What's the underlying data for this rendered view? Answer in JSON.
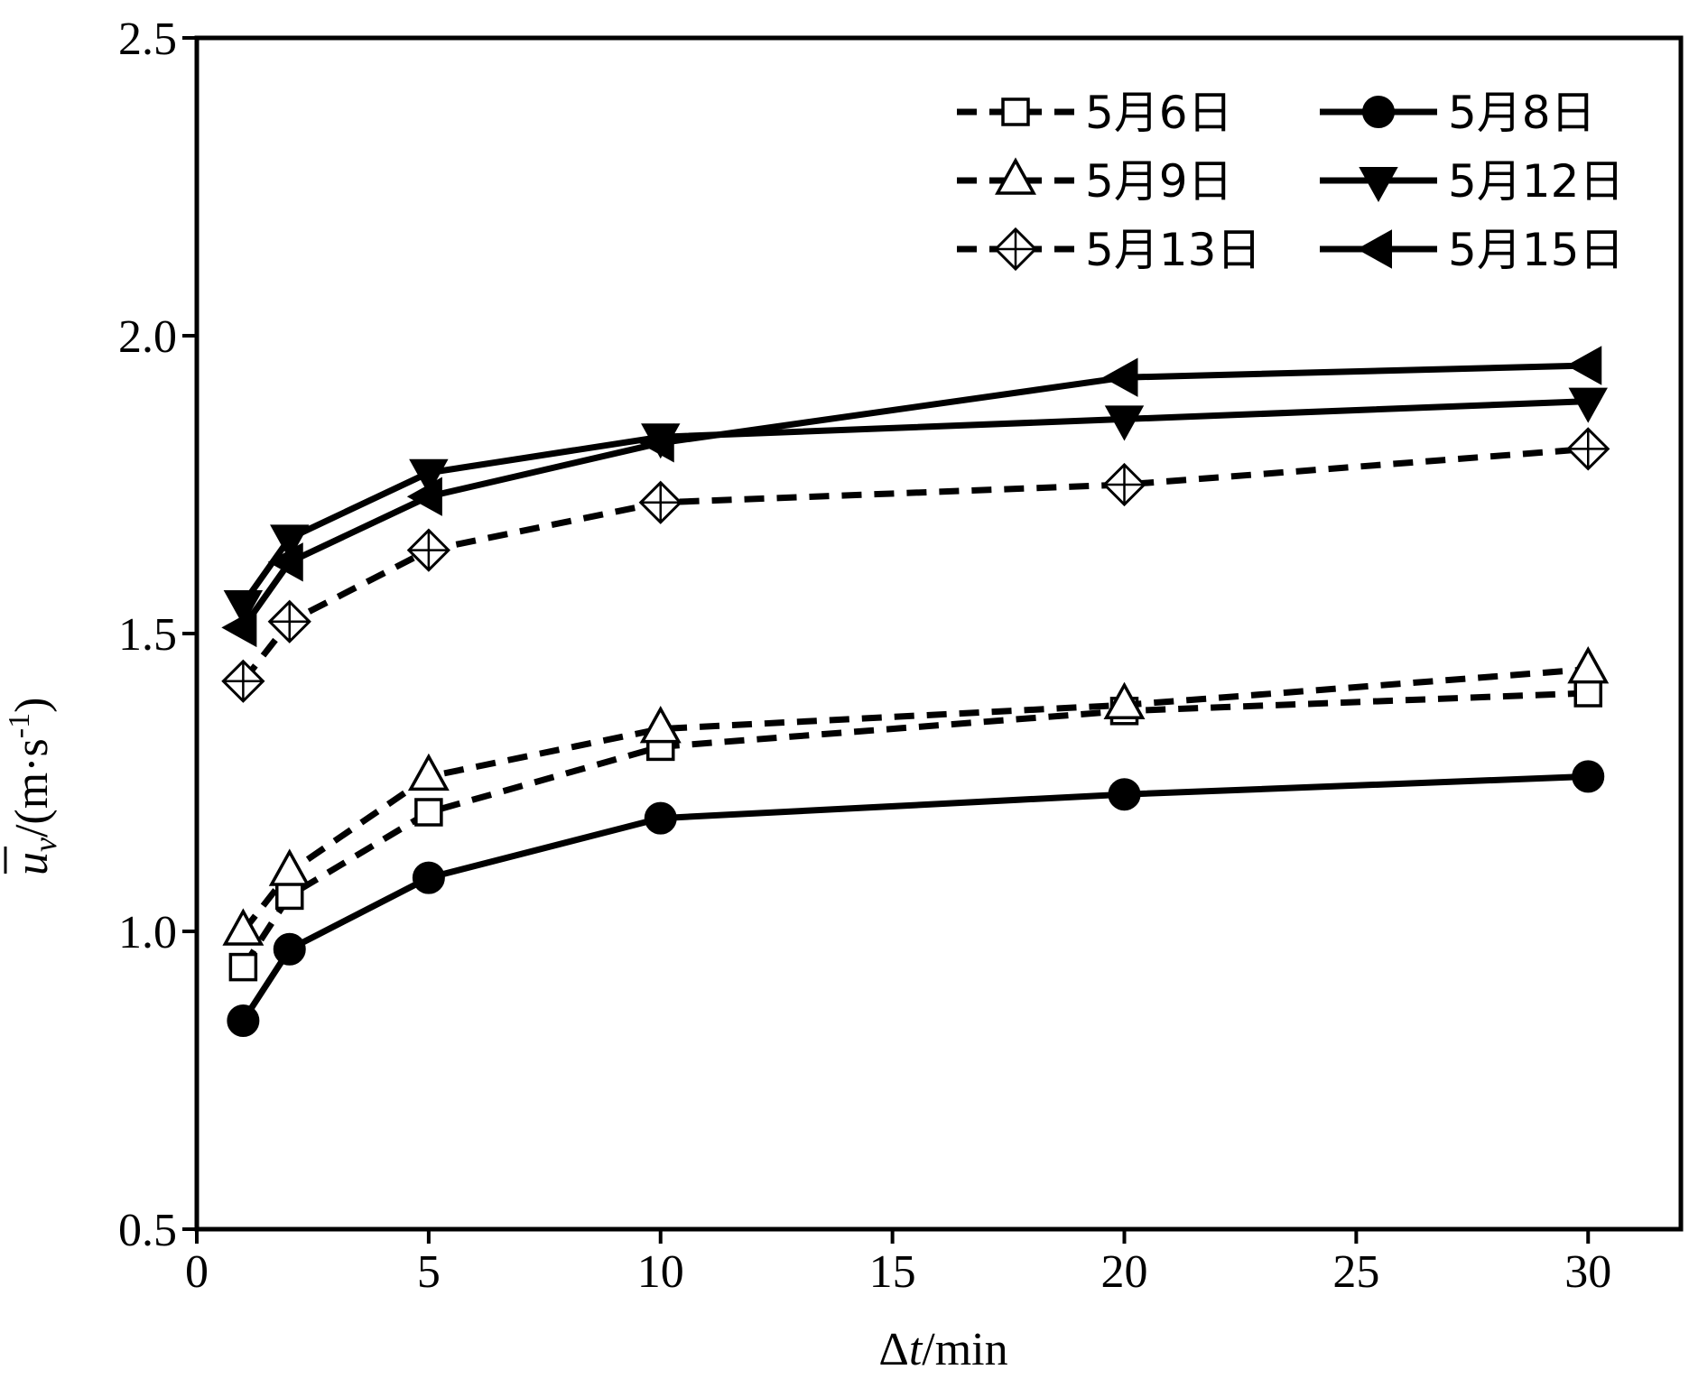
{
  "chart_data": {
    "type": "line",
    "xlabel_prefix": "Δ",
    "xlabel_var": "t",
    "xlabel_suffix": "/min",
    "ylabel_var": "u",
    "ylabel_sub": "v",
    "ylabel_unit_pre": "/(m·s",
    "ylabel_unit_sup": "-1",
    "ylabel_unit_post": ")",
    "xlim": [
      0,
      32
    ],
    "ylim": [
      0.5,
      2.5
    ],
    "xticks": [
      "0",
      "5",
      "10",
      "15",
      "20",
      "25",
      "30"
    ],
    "yticks": [
      "0.5",
      "1.0",
      "1.5",
      "2.0",
      "2.5"
    ],
    "grid": false,
    "legend_position": "top-right",
    "x": [
      1,
      2,
      5,
      10,
      20,
      30
    ],
    "series": [
      {
        "name": "5月6日",
        "marker": "square",
        "line": "dashed",
        "values": [
          0.94,
          1.06,
          1.2,
          1.31,
          1.37,
          1.4
        ]
      },
      {
        "name": "5月8日",
        "marker": "circle",
        "line": "solid",
        "values": [
          0.85,
          0.97,
          1.09,
          1.19,
          1.23,
          1.26
        ]
      },
      {
        "name": "5月9日",
        "marker": "triangle-up",
        "line": "dashed",
        "values": [
          1.0,
          1.1,
          1.26,
          1.34,
          1.38,
          1.44
        ]
      },
      {
        "name": "5月12日",
        "marker": "triangle-down",
        "line": "solid",
        "values": [
          1.55,
          1.66,
          1.77,
          1.83,
          1.86,
          1.89
        ]
      },
      {
        "name": "5月13日",
        "marker": "diamond-plus",
        "line": "dashed",
        "values": [
          1.42,
          1.52,
          1.64,
          1.72,
          1.75,
          1.81
        ]
      },
      {
        "name": "5月15日",
        "marker": "triangle-left",
        "line": "solid",
        "values": [
          1.51,
          1.62,
          1.73,
          1.82,
          1.93,
          1.95
        ]
      }
    ]
  }
}
